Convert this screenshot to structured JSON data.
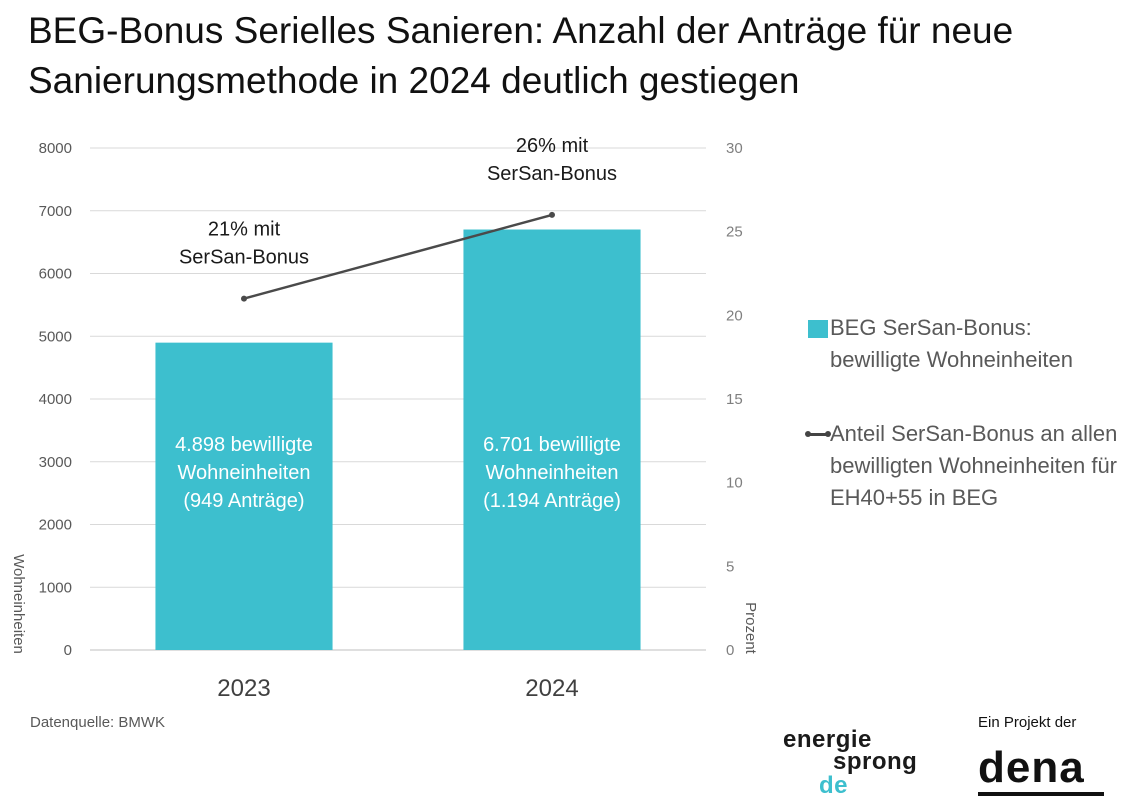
{
  "title": "BEG-Bonus Serielles Sanieren: Anzahl der Anträge für neue Sanierungsmethode in 2024 deutlich gestiegen",
  "source": "Datenquelle: BMWK",
  "colors": {
    "bar": "#3dbfce",
    "line": "#4a4a4a",
    "grid": "#d9d9d9",
    "axis_text": "#7f7f7f"
  },
  "chart_data": {
    "type": "bar",
    "categories": [
      "2023",
      "2024"
    ],
    "series": [
      {
        "name": "BEG SerSan-Bonus: bewilligte Wohneinheiten",
        "type": "bar",
        "axis": "left",
        "values": [
          4898,
          6701
        ],
        "labels": [
          [
            "4.898 bewilligte",
            "Wohneinheiten",
            "(949 Anträge)"
          ],
          [
            "6.701 bewilligte",
            "Wohneinheiten",
            "(1.194 Anträge)"
          ]
        ]
      },
      {
        "name": "Anteil SerSan-Bonus an allen bewilligten Wohneinheiten für EH40+55 in BEG",
        "type": "line",
        "axis": "right",
        "values": [
          21,
          26
        ],
        "labels": [
          [
            "21% mit",
            "SerSan-Bonus"
          ],
          [
            "26% mit",
            "SerSan-Bonus"
          ]
        ]
      }
    ],
    "ylabel": "Wohneinheiten",
    "ylim": [
      0,
      8000
    ],
    "yticks": [
      0,
      1000,
      2000,
      3000,
      4000,
      5000,
      6000,
      7000,
      8000
    ],
    "y2label": "Prozent",
    "y2lim": [
      0,
      30
    ],
    "y2ticks": [
      0,
      5,
      10,
      15,
      20,
      25,
      30
    ],
    "grid": true,
    "legend": "right"
  },
  "logos": {
    "energiesprong": {
      "words": [
        "energie",
        "sprong",
        "de"
      ]
    },
    "dena": {
      "label": "Ein Projekt der",
      "word": "dena"
    }
  }
}
